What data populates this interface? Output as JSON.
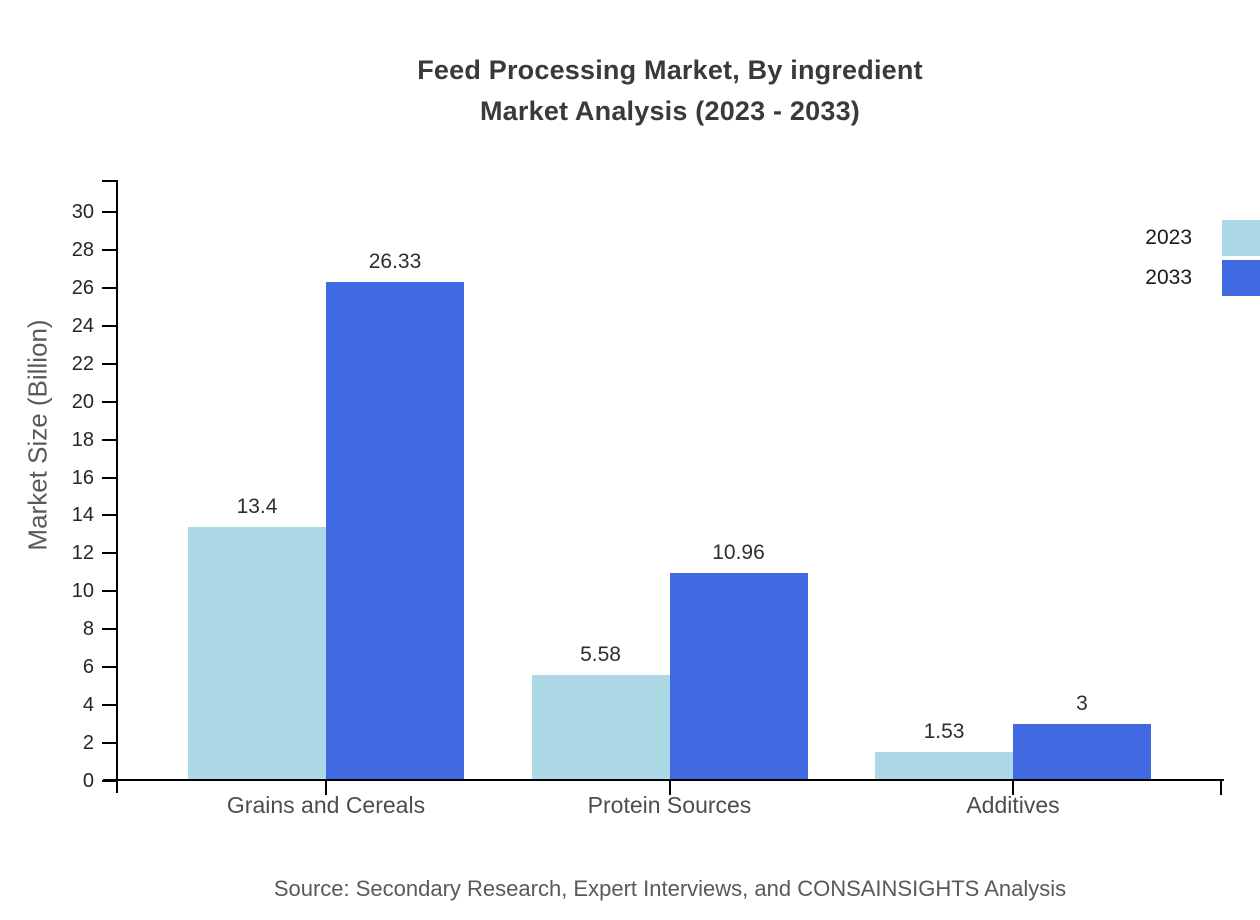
{
  "title": {
    "line1": "Feed Processing Market, By ingredient",
    "line2": "Market Analysis (2023 - 2033)"
  },
  "source_note": "Source: Secondary Research, Expert Interviews, and CONSAINSIGHTS Analysis",
  "colors": {
    "series_2023": "#ADD8E6",
    "series_2033": "#4169E1",
    "axis": "#000000",
    "title_text": "#3A3A3A",
    "tick_text": "#262626",
    "category_text": "#4D4D4D",
    "muted_text": "#595959"
  },
  "legend": {
    "items": [
      {
        "label": "2023",
        "color": "#ADD8E6"
      },
      {
        "label": "2033",
        "color": "#4169E1"
      }
    ]
  },
  "chart_data": {
    "type": "bar",
    "title": "Feed Processing Market, By ingredient Market Analysis (2023 - 2033)",
    "categories": [
      "Grains and Cereals",
      "Protein Sources",
      "Additives"
    ],
    "series": [
      {
        "name": "2023",
        "color": "#ADD8E6",
        "values": [
          13.4,
          5.58,
          1.53
        ],
        "labels": [
          "13.4",
          "5.58",
          "1.53"
        ]
      },
      {
        "name": "2033",
        "color": "#4169E1",
        "values": [
          26.33,
          10.96,
          3
        ],
        "labels": [
          "26.33",
          "10.96",
          "3"
        ]
      }
    ],
    "xlabel": "",
    "ylabel": "Market Size (Billion)",
    "ylim": [
      0,
      30
    ],
    "ytick_step": 2,
    "yticks": [
      0,
      2,
      4,
      6,
      8,
      10,
      12,
      14,
      16,
      18,
      20,
      22,
      24,
      26,
      28,
      30
    ],
    "grid": false,
    "legend_position": "top-right"
  }
}
